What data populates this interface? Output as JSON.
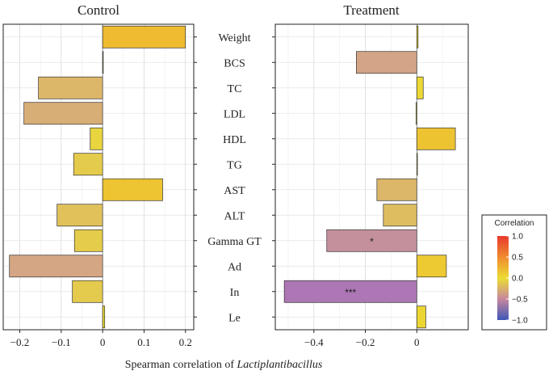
{
  "chart_data": {
    "type": "bar",
    "orientation": "horizontal",
    "categories": [
      "Weight",
      "BCS",
      "TC",
      "LDL",
      "HDL",
      "TG",
      "AST",
      "ALT",
      "Gamma GT",
      "Ad",
      "In",
      "Le"
    ],
    "panels": [
      {
        "name": "Control",
        "values": [
          0.2,
          0.0,
          -0.155,
          -0.19,
          -0.03,
          -0.07,
          0.145,
          -0.11,
          -0.068,
          -0.225,
          -0.073,
          0.005
        ],
        "significance": [
          "",
          "",
          "",
          "",
          "",
          "",
          "",
          "",
          "",
          "",
          "",
          ""
        ],
        "xlim": [
          -0.24,
          0.22
        ],
        "xticks": [
          -0.2,
          -0.1,
          0,
          0.1,
          0.2
        ],
        "xtick_labels": [
          "−0.2",
          "−0.1",
          "0",
          "0.1",
          "0.2"
        ]
      },
      {
        "name": "Treatment",
        "values": [
          0.005,
          -0.235,
          0.025,
          -0.003,
          0.15,
          0.0,
          -0.155,
          -0.13,
          -0.35,
          0.115,
          -0.515,
          0.035
        ],
        "significance": [
          "",
          "",
          "",
          "",
          "",
          "",
          "",
          "",
          "*",
          "",
          "***",
          ""
        ],
        "xlim": [
          -0.55,
          0.2
        ],
        "xticks": [
          -0.4,
          -0.2,
          0
        ],
        "xtick_labels": [
          "−0.4",
          "−0.2",
          "0"
        ]
      }
    ],
    "xlabel_prefix": "Spearman correlation of",
    "xlabel_italic": "Lactiplantibacillus",
    "legend": {
      "title": "Correlation",
      "range": [
        -1.0,
        1.0
      ],
      "ticks": [
        1.0,
        0.5,
        0.0,
        -0.5,
        -1.0
      ],
      "tick_labels": [
        "1.0",
        "0.5",
        "0.0",
        "−0.5",
        "−1.0"
      ],
      "colors": [
        "#e8392e",
        "#f08a2f",
        "#ecdc33",
        "#c99b9a",
        "#9c6fb6",
        "#3f57b8"
      ]
    },
    "grid": true
  }
}
